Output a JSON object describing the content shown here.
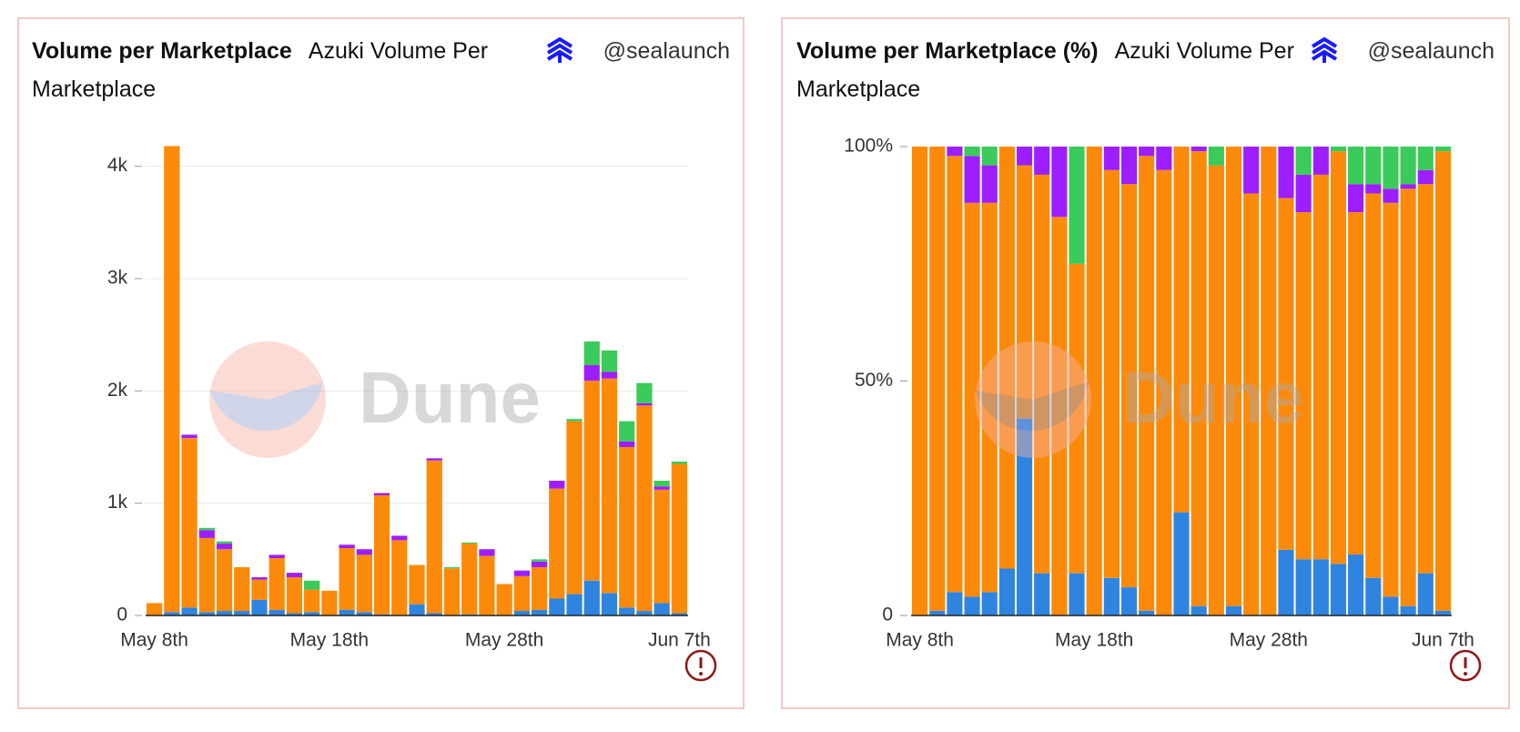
{
  "chart_data": [
    {
      "type": "bar",
      "stacked": true,
      "grid": true,
      "title": "Volume per Marketplace",
      "subtitle": "Azuki Volume Per Marketplace",
      "handle": "@sealaunch",
      "watermark": "Dune",
      "categories": [
        "May 8th",
        null,
        null,
        null,
        null,
        null,
        null,
        null,
        null,
        null,
        "May 18th",
        null,
        null,
        null,
        null,
        null,
        null,
        null,
        null,
        null,
        "May 28th",
        null,
        null,
        null,
        null,
        null,
        null,
        null,
        null,
        null,
        "Jun 7th"
      ],
      "series": [
        {
          "color": "#2f84e0",
          "values": [
            0,
            30,
            70,
            30,
            40,
            40,
            140,
            50,
            20,
            30,
            0,
            50,
            30,
            10,
            0,
            100,
            20,
            0,
            10,
            0,
            0,
            40,
            50,
            150,
            190,
            310,
            200,
            70,
            40,
            110,
            20
          ]
        },
        {
          "color": "#fc8a0a",
          "values": [
            110,
            4150,
            1510,
            660,
            550,
            390,
            180,
            460,
            320,
            200,
            220,
            550,
            510,
            1060,
            670,
            350,
            1360,
            420,
            630,
            530,
            280,
            310,
            380,
            980,
            1540,
            1780,
            1910,
            1430,
            1830,
            1010,
            1330
          ]
        },
        {
          "color": "#9d1fff",
          "values": [
            0,
            0,
            30,
            70,
            50,
            0,
            20,
            30,
            40,
            0,
            0,
            30,
            50,
            20,
            40,
            0,
            20,
            0,
            0,
            60,
            0,
            50,
            50,
            70,
            0,
            140,
            60,
            50,
            20,
            30,
            0
          ]
        },
        {
          "color": "#3acb5a",
          "values": [
            0,
            0,
            0,
            20,
            20,
            0,
            0,
            0,
            0,
            80,
            0,
            0,
            0,
            0,
            0,
            0,
            0,
            10,
            10,
            0,
            0,
            0,
            20,
            0,
            20,
            210,
            190,
            180,
            180,
            50,
            20
          ]
        }
      ],
      "ylim": [
        0,
        4200
      ],
      "yticks": [
        0,
        {
          "value": 1000,
          "label": "1k"
        },
        {
          "value": 2000,
          "label": "2k"
        },
        {
          "value": 3000,
          "label": "3k"
        },
        {
          "value": 4000,
          "label": "4k"
        }
      ]
    },
    {
      "type": "bar",
      "stacked": true,
      "grid": false,
      "title": "Volume per Marketplace (%)",
      "subtitle": "Azuki Volume Per Marketplace",
      "handle": "@sealaunch",
      "watermark": "Dune",
      "categories": [
        "May 8th",
        null,
        null,
        null,
        null,
        null,
        null,
        null,
        null,
        null,
        "May 18th",
        null,
        null,
        null,
        null,
        null,
        null,
        null,
        null,
        null,
        "May 28th",
        null,
        null,
        null,
        null,
        null,
        null,
        null,
        null,
        null,
        "Jun 7th"
      ],
      "series": [
        {
          "color": "#2f84e0",
          "values": [
            0,
            1,
            5,
            4,
            5,
            10,
            42,
            9,
            0,
            9,
            0,
            8,
            6,
            1,
            0,
            22,
            2,
            0,
            2,
            0,
            0,
            14,
            12,
            12,
            11,
            13,
            8,
            4,
            2,
            9,
            1
          ]
        },
        {
          "color": "#fc8a0a",
          "values": [
            100,
            99,
            93,
            84,
            83,
            90,
            54,
            85,
            85,
            66,
            100,
            87,
            86,
            97,
            95,
            78,
            97,
            96,
            98,
            90,
            100,
            75,
            74,
            82,
            88,
            73,
            82,
            84,
            89,
            83,
            98
          ]
        },
        {
          "color": "#9d1fff",
          "values": [
            0,
            0,
            2,
            10,
            8,
            0,
            4,
            6,
            15,
            0,
            0,
            5,
            8,
            2,
            5,
            0,
            1,
            0,
            0,
            10,
            0,
            11,
            8,
            6,
            0,
            6,
            2,
            3,
            1,
            3,
            0
          ]
        },
        {
          "color": "#3acb5a",
          "values": [
            0,
            0,
            0,
            2,
            4,
            0,
            0,
            0,
            0,
            25,
            0,
            0,
            0,
            0,
            0,
            0,
            0,
            4,
            0,
            0,
            0,
            0,
            6,
            0,
            1,
            8,
            8,
            9,
            8,
            5,
            1
          ]
        }
      ],
      "ylim": [
        0,
        100
      ],
      "yticks": [
        0,
        {
          "value": 50,
          "label": "50%"
        },
        {
          "value": 100,
          "label": "100%"
        }
      ]
    }
  ]
}
